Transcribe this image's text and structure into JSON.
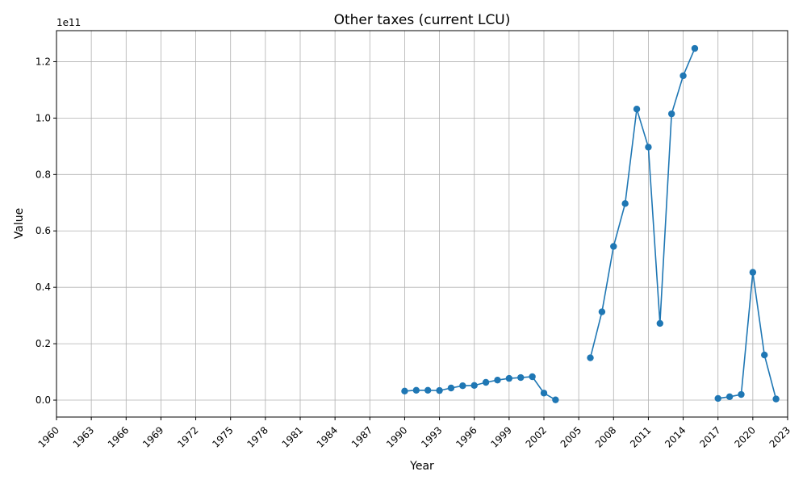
{
  "chart_data": {
    "type": "line",
    "title": "Other taxes (current LCU)",
    "xlabel": "Year",
    "ylabel": "Value",
    "offset_label": "1e11",
    "grid": true,
    "xlim": [
      1960,
      2023
    ],
    "ylim": [
      -0.06,
      1.31
    ],
    "y_multiplier": 100000000000,
    "x_ticks": [
      1960,
      1963,
      1966,
      1969,
      1972,
      1975,
      1978,
      1981,
      1984,
      1987,
      1990,
      1993,
      1996,
      1999,
      2002,
      2005,
      2008,
      2011,
      2014,
      2017,
      2020,
      2023
    ],
    "y_ticks": [
      0.0,
      0.2,
      0.4,
      0.6,
      0.8,
      1.0,
      1.2
    ],
    "y_tick_labels": [
      "0.0",
      "0.2",
      "0.4",
      "0.6",
      "0.8",
      "1.0",
      "1.2"
    ],
    "color": "#1f77b4",
    "series": [
      {
        "x": [
          1990,
          1991,
          1992,
          1993,
          1994,
          1995,
          1996,
          1997,
          1998,
          1999,
          2000,
          2001,
          2002,
          2003,
          2004,
          2005,
          2006,
          2007,
          2008,
          2009,
          2010,
          2011,
          2012,
          2013,
          2014,
          2015,
          2016,
          2017,
          2018,
          2019,
          2020,
          2021,
          2022
        ],
        "values": [
          0.032,
          0.035,
          0.035,
          0.034,
          0.043,
          0.051,
          0.052,
          0.063,
          0.071,
          0.077,
          0.08,
          0.083,
          0.025,
          0.001,
          null,
          null,
          0.15,
          0.313,
          0.545,
          0.697,
          1.032,
          0.897,
          0.272,
          1.015,
          1.15,
          1.247,
          null,
          0.006,
          0.012,
          0.02,
          0.453,
          0.16,
          0.004
        ]
      }
    ]
  }
}
